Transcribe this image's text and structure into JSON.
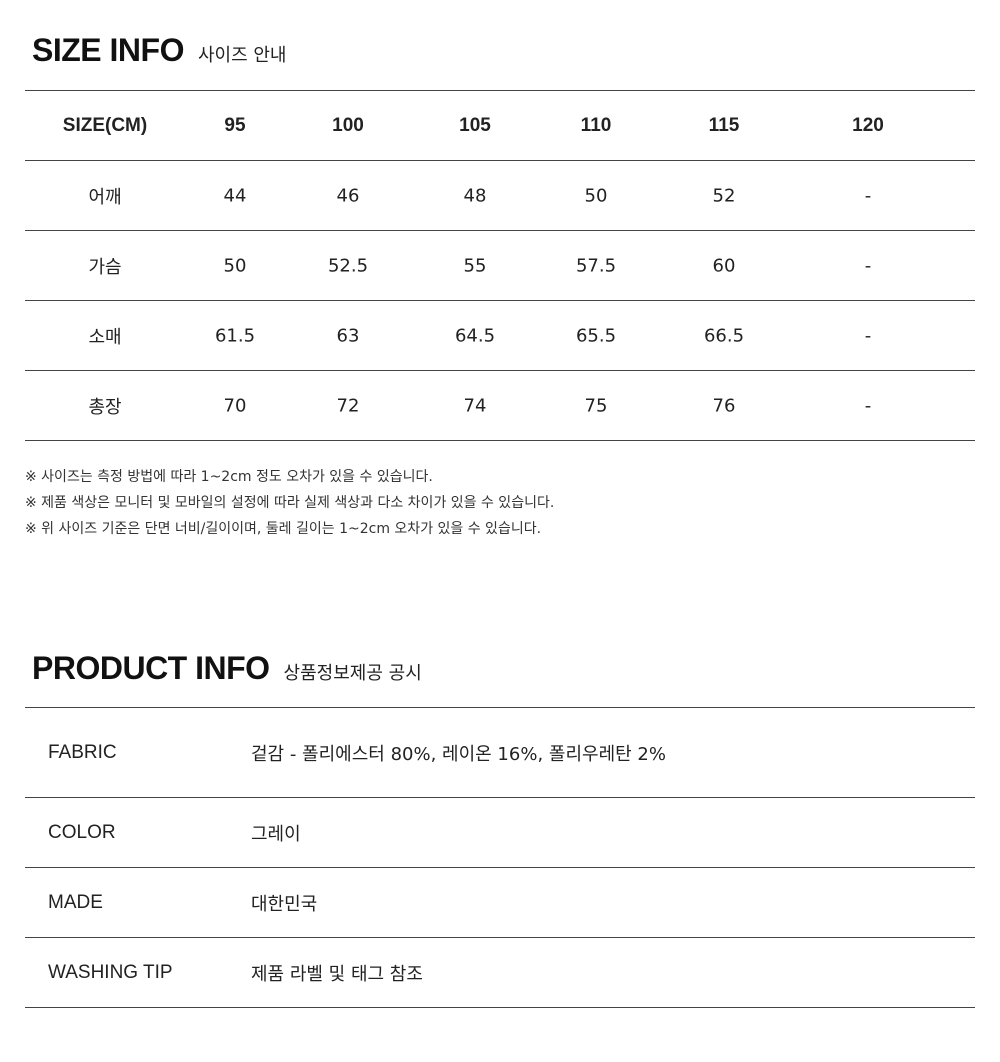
{
  "size_info": {
    "title": "SIZE INFO",
    "subtitle": "사이즈 안내",
    "headers": [
      "SIZE(CM)",
      "95",
      "100",
      "105",
      "110",
      "115",
      "120"
    ],
    "rows": [
      [
        "어깨",
        "44",
        "46",
        "48",
        "50",
        "52",
        "-"
      ],
      [
        "가슴",
        "50",
        "52.5",
        "55",
        "57.5",
        "60",
        "-"
      ],
      [
        "소매",
        "61.5",
        "63",
        "64.5",
        "65.5",
        "66.5",
        "-"
      ],
      [
        "총장",
        "70",
        "72",
        "74",
        "75",
        "76",
        "-"
      ]
    ],
    "notes": [
      "※ 사이즈는 측정 방법에 따라 1~2cm 정도 오차가 있을 수 있습니다.",
      "※ 제품 색상은 모니터 및 모바일의 설정에 따라 실제 색상과 다소 차이가 있을 수 있습니다.",
      "※ 위 사이즈 기준은 단면 너비/길이이며, 둘레 길이는 1~2cm 오차가 있을 수 있습니다."
    ]
  },
  "product_info": {
    "title": "PRODUCT INFO",
    "subtitle": "상품정보제공 공시",
    "rows": [
      {
        "label": "FABRIC",
        "value": "겉감 - 폴리에스터 80%, 레이온 16%, 폴리우레탄 2%"
      },
      {
        "label": "COLOR",
        "value": "그레이"
      },
      {
        "label": "MADE",
        "value": "대한민국"
      },
      {
        "label": "WASHING TIP",
        "value": "제품 라벨 및 태그 참조"
      }
    ]
  }
}
